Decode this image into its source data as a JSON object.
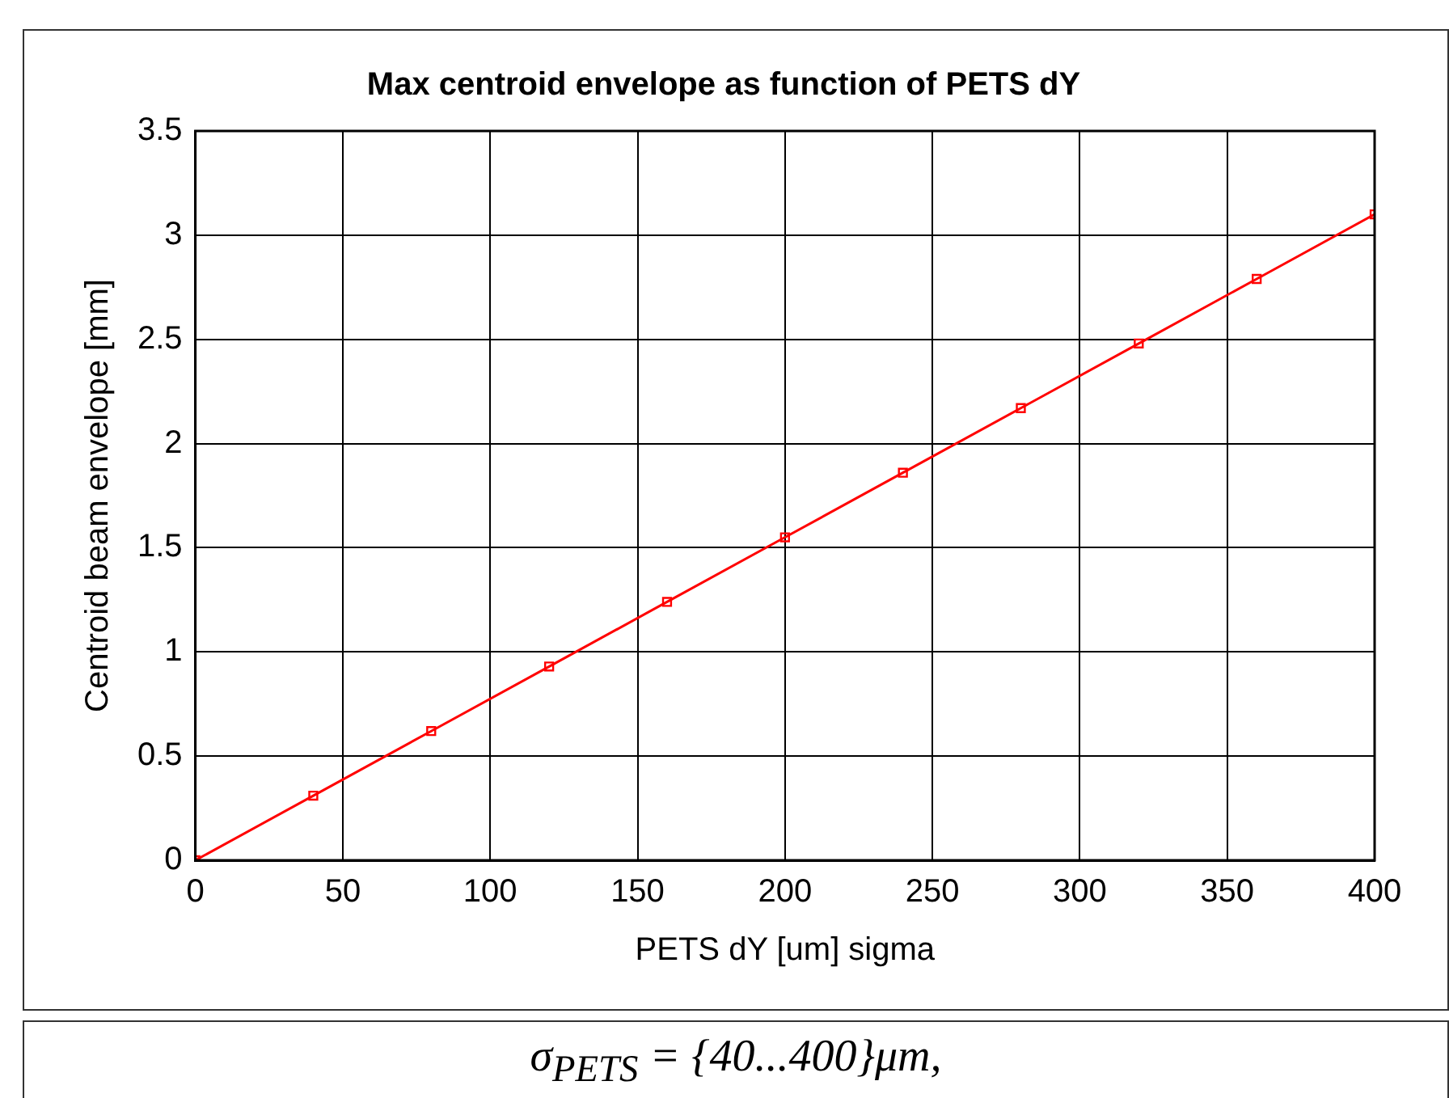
{
  "chart_data": {
    "type": "line",
    "title": "Max centroid envelope as function of PETS dY",
    "xlabel": "PETS dY [um] sigma",
    "ylabel": "Centroid beam envelope [mm]",
    "x": [
      0,
      40,
      80,
      120,
      160,
      200,
      240,
      280,
      320,
      360,
      400
    ],
    "series": [
      {
        "color": "#ff0000",
        "values": [
          0,
          0.31,
          0.62,
          0.93,
          1.24,
          1.55,
          1.86,
          2.17,
          2.48,
          2.79,
          3.1
        ]
      }
    ],
    "xlim": [
      0,
      400
    ],
    "xticks": [
      0,
      50,
      100,
      150,
      200,
      250,
      300,
      350,
      400
    ],
    "ylim": [
      0,
      3.5
    ],
    "yticks": [
      0,
      0.5,
      1,
      1.5,
      2,
      2.5,
      3,
      3.5
    ],
    "grid": true,
    "marker": "square",
    "line_style": "solid",
    "annotations": [
      "σ$_{PETS}$ = {40...400}μm,"
    ]
  }
}
